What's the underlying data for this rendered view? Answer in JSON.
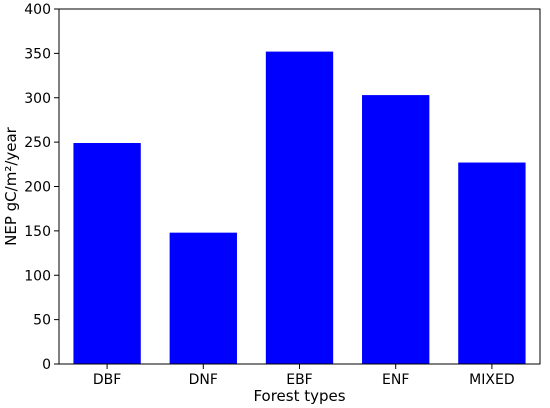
{
  "chart_data": {
    "type": "bar",
    "title": "",
    "xlabel": "Forest types",
    "ylabel": "NEP gC/m²/year",
    "categories": [
      "DBF",
      "DNF",
      "EBF",
      "ENF",
      "MIXED"
    ],
    "values": [
      249,
      148,
      352,
      303,
      227
    ],
    "ylim": [
      0,
      400
    ],
    "yticks": [
      0,
      50,
      100,
      150,
      200,
      250,
      300,
      350,
      400
    ],
    "bar_color": "#0000ff",
    "grid": false,
    "legend": "none"
  }
}
